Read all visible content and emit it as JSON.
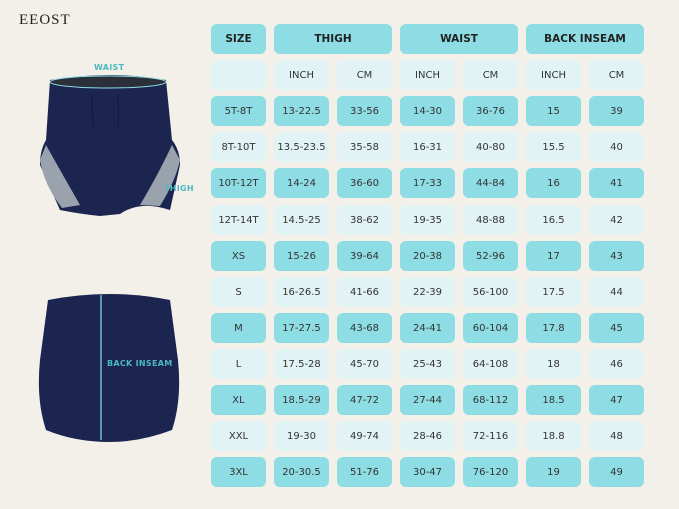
{
  "brand": "EEOST",
  "labels": {
    "waist": "WAIST",
    "thigh": "THIGH",
    "back_inseam": "BACK INSEAM"
  },
  "colors": {
    "accent_dark": "#8edde4",
    "accent_light": "#e2f3f5",
    "garment": "#1b2550"
  },
  "table": {
    "headers": [
      "SIZE",
      "THIGH",
      "WAIST",
      "BACK INSEAM"
    ],
    "units": [
      "",
      "INCH",
      "CM",
      "INCH",
      "CM",
      "INCH",
      "CM"
    ],
    "rows": [
      [
        "5T-8T",
        "13-22.5",
        "33-56",
        "14-30",
        "36-76",
        "15",
        "39"
      ],
      [
        "8T-10T",
        "13.5-23.5",
        "35-58",
        "16-31",
        "40-80",
        "15.5",
        "40"
      ],
      [
        "10T-12T",
        "14-24",
        "36-60",
        "17-33",
        "44-84",
        "16",
        "41"
      ],
      [
        "12T-14T",
        "14.5-25",
        "38-62",
        "19-35",
        "48-88",
        "16.5",
        "42"
      ],
      [
        "XS",
        "15-26",
        "39-64",
        "20-38",
        "52-96",
        "17",
        "43"
      ],
      [
        "S",
        "16-26.5",
        "41-66",
        "22-39",
        "56-100",
        "17.5",
        "44"
      ],
      [
        "M",
        "17-27.5",
        "43-68",
        "24-41",
        "60-104",
        "17.8",
        "45"
      ],
      [
        "L",
        "17.5-28",
        "45-70",
        "25-43",
        "64-108",
        "18",
        "46"
      ],
      [
        "XL",
        "18.5-29",
        "47-72",
        "27-44",
        "68-112",
        "18.5",
        "47"
      ],
      [
        "XXL",
        "19-30",
        "49-74",
        "28-46",
        "72-116",
        "18.8",
        "48"
      ],
      [
        "3XL",
        "20-30.5",
        "51-76",
        "30-47",
        "76-120",
        "19",
        "49"
      ]
    ]
  }
}
